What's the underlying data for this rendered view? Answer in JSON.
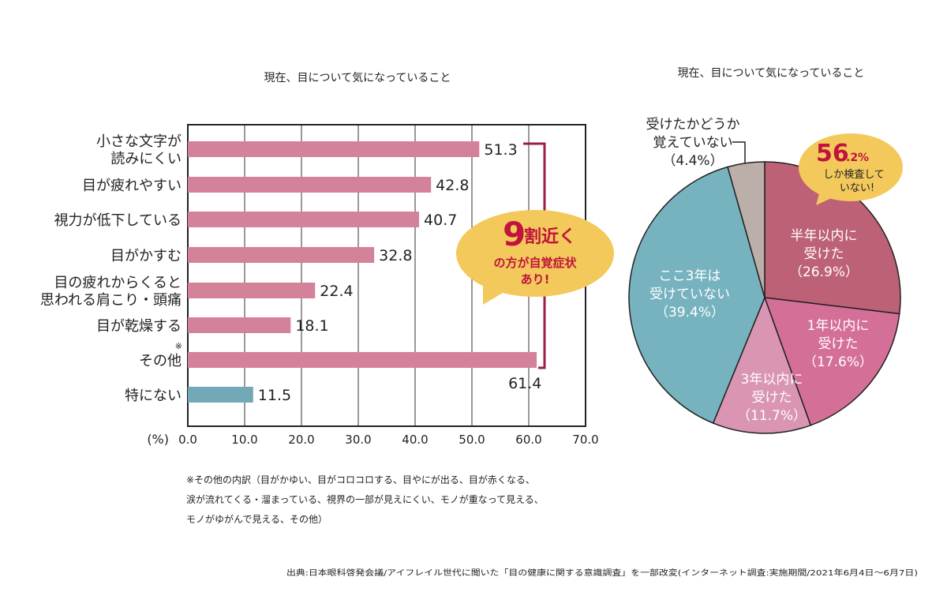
{
  "bar_chart_title": "現在、目について気になっていること",
  "pie_chart_title": "現在、目について気になっていること",
  "bar_callout": {
    "big": "9",
    "line1": "割近く",
    "line2": "の方が自覚症状",
    "line3": "あり!"
  },
  "pie_callout": {
    "big": "56",
    "small": ".2%",
    "line1": "しか検査して",
    "line2": "いない!"
  },
  "footnote": [
    "※その他の内訳（目がかゆい、目がコロコロする、目やにが出る、目が赤くなる、",
    "涙が流れてくる・溜まっている、視界の一部が見えにくい、モノが重なって見える、",
    "モノがゆがんで見える、その他）"
  ],
  "source": "出典:日本眼科啓発会議/アイフレイル世代に聞いた「目の健康に関する意識調査」を一部改変(インターネット調査:実施期間/2021年6月4日〜6月7日)",
  "colors": {
    "pink_bar": "#d4819a",
    "teal_bar": "#72a9b6",
    "bracket": "#9b1f45",
    "callout": "#f3c95c",
    "callout_text": "#c0143c"
  },
  "chart_data": [
    {
      "type": "bar",
      "orientation": "horizontal",
      "title": "現在、目について気になっていること",
      "categories": [
        [
          "小さな文字が",
          "読みにくい"
        ],
        [
          "目が疲れやすい"
        ],
        [
          "視力が低下している"
        ],
        [
          "目がかすむ"
        ],
        [
          "目の疲れからくると",
          "思われる肩こり・頭痛"
        ],
        [
          "目が乾燥する"
        ],
        [
          "その他"
        ],
        [
          "特にない"
        ]
      ],
      "values": [
        51.3,
        42.8,
        40.7,
        32.8,
        22.4,
        18.1,
        61.4,
        11.5
      ],
      "value_labels": [
        "51.3",
        "42.8",
        "40.7",
        "32.8",
        "22.4",
        "18.1",
        "61.4",
        "11.5"
      ],
      "bar_colors": [
        "#d4819a",
        "#d4819a",
        "#d4819a",
        "#d4819a",
        "#d4819a",
        "#d4819a",
        "#d4819a",
        "#72a9b6"
      ],
      "other_mark": "※",
      "xlabel": "(%)",
      "xlim": [
        0,
        70
      ],
      "xticks": [
        "0.0",
        "10.0",
        "20.0",
        "30.0",
        "40.0",
        "50.0",
        "60.0",
        "70.0"
      ],
      "grid": true
    },
    {
      "type": "pie",
      "title": "現在、目について気になっていること",
      "slices": [
        {
          "label": [
            "半年以内に",
            "受けた"
          ],
          "pct_label": "（26.9%）",
          "value": 26.9,
          "color": "#bd6177",
          "text_color": "#ffffff"
        },
        {
          "label": [
            "1年以内に",
            "受けた"
          ],
          "pct_label": "（17.6%）",
          "value": 17.6,
          "color": "#d46f97",
          "text_color": "#ffffff"
        },
        {
          "label": [
            "3年以内に",
            "受けた"
          ],
          "pct_label": "（11.7%）",
          "value": 11.7,
          "color": "#d995b2",
          "text_color": "#ffffff"
        },
        {
          "label": [
            "ここ3年は",
            "受けていない"
          ],
          "pct_label": "（39.4%）",
          "value": 39.4,
          "color": "#76b3bf",
          "text_color": "#ffffff"
        },
        {
          "label": [
            "受けたかどうか",
            "覚えていない"
          ],
          "pct_label": "（4.4%）",
          "value": 4.4,
          "color": "#bcaea8",
          "text_color": "#222222"
        }
      ]
    }
  ]
}
